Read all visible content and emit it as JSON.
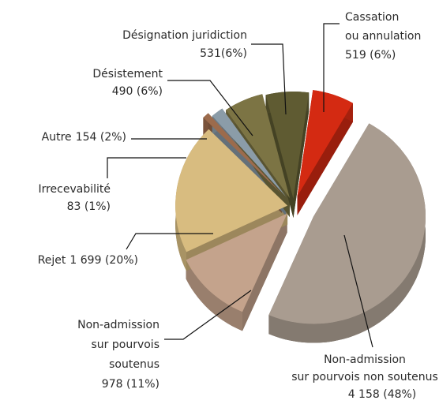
{
  "chart_data": {
    "type": "pie",
    "categories": [
      [
        "Cassation",
        "ou annulation"
      ],
      [
        "Non-admission",
        "sur pourvois non soutenus"
      ],
      [
        "Non-admission",
        "sur pourvois",
        "soutenus"
      ],
      [
        "Rejet"
      ],
      [
        "Irrecevabilité"
      ],
      [
        "Autre"
      ],
      [
        "Désistement"
      ],
      [
        "Désignation juridiction"
      ]
    ],
    "values": [
      519,
      4158,
      978,
      1699,
      83,
      154,
      490,
      531
    ],
    "value_labels": [
      "519 (6%)",
      "4 158 (48%)",
      "978 (11%)",
      "1 699 (20%)",
      "83 (1%)",
      "154 (2%)",
      "490 (6%)",
      "531(6%)"
    ],
    "colors": [
      "#d42a12",
      "#a99c90",
      "#c4a38c",
      "#d8bc80",
      "#9c6b4c",
      "#8b9ca8",
      "#7c7444",
      "#5f5b32"
    ]
  }
}
